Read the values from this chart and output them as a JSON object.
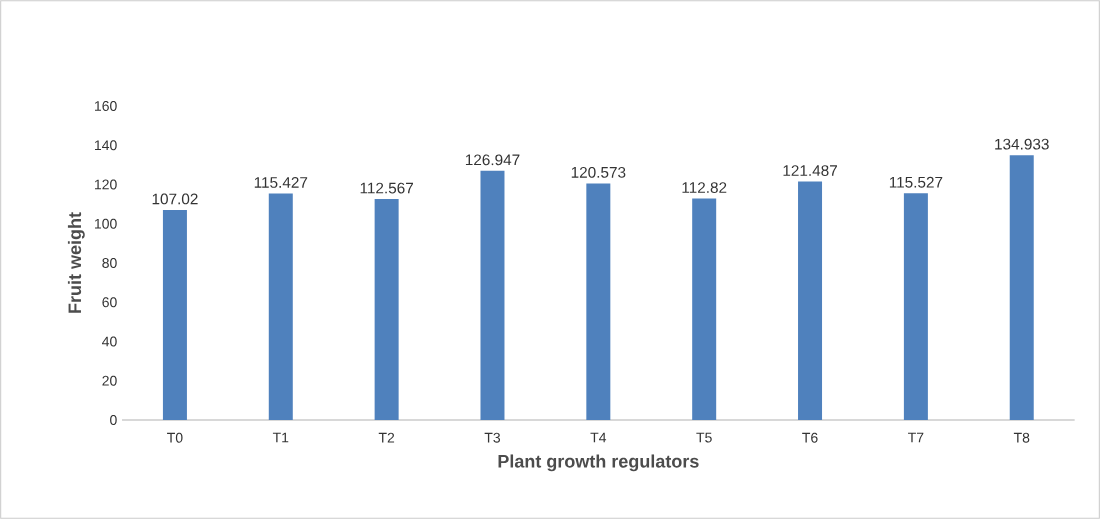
{
  "chart_data": {
    "type": "bar",
    "xlabel": "Plant growth regulators",
    "ylabel": "Fruit  weight",
    "categories": [
      "T0",
      "T1",
      "T2",
      "T3",
      "T4",
      "T5",
      "T6",
      "T7",
      "T8"
    ],
    "values": [
      107.02,
      115.427,
      112.567,
      126.947,
      120.573,
      112.82,
      121.487,
      115.527,
      134.933
    ],
    "color": "#4f81bd",
    "data_labels": true,
    "ylim": [
      0,
      160
    ],
    "yticks": [
      0,
      20,
      40,
      60,
      80,
      100,
      120,
      140,
      160
    ]
  }
}
